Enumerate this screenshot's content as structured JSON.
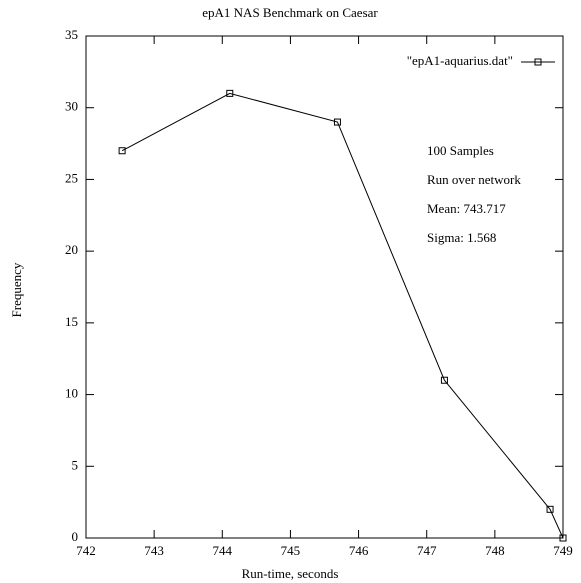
{
  "chart_data": {
    "type": "line",
    "title": "epA1 NAS Benchmark on Caesar",
    "x_label": "Run-time, seconds",
    "y_label": "Frequency",
    "x": [
      742.53,
      744.11,
      745.69,
      747.26,
      748.81,
      749.0
    ],
    "series": [
      {
        "name": "\"epA1-aquarius.dat\"",
        "color": "#000000",
        "values": [
          27,
          31,
          29,
          11,
          2,
          0
        ]
      }
    ],
    "xlim": [
      742,
      749
    ],
    "xticks": [
      742,
      743,
      744,
      745,
      746,
      747,
      748,
      749
    ],
    "ylim": [
      0,
      35
    ],
    "yticks": [
      0,
      5,
      10,
      15,
      20,
      25,
      30,
      35
    ],
    "grid": false,
    "legend": "top-right",
    "annotations": [
      "100 Samples",
      "Run over network",
      "Mean:  743.717",
      "Sigma:  1.568"
    ]
  }
}
